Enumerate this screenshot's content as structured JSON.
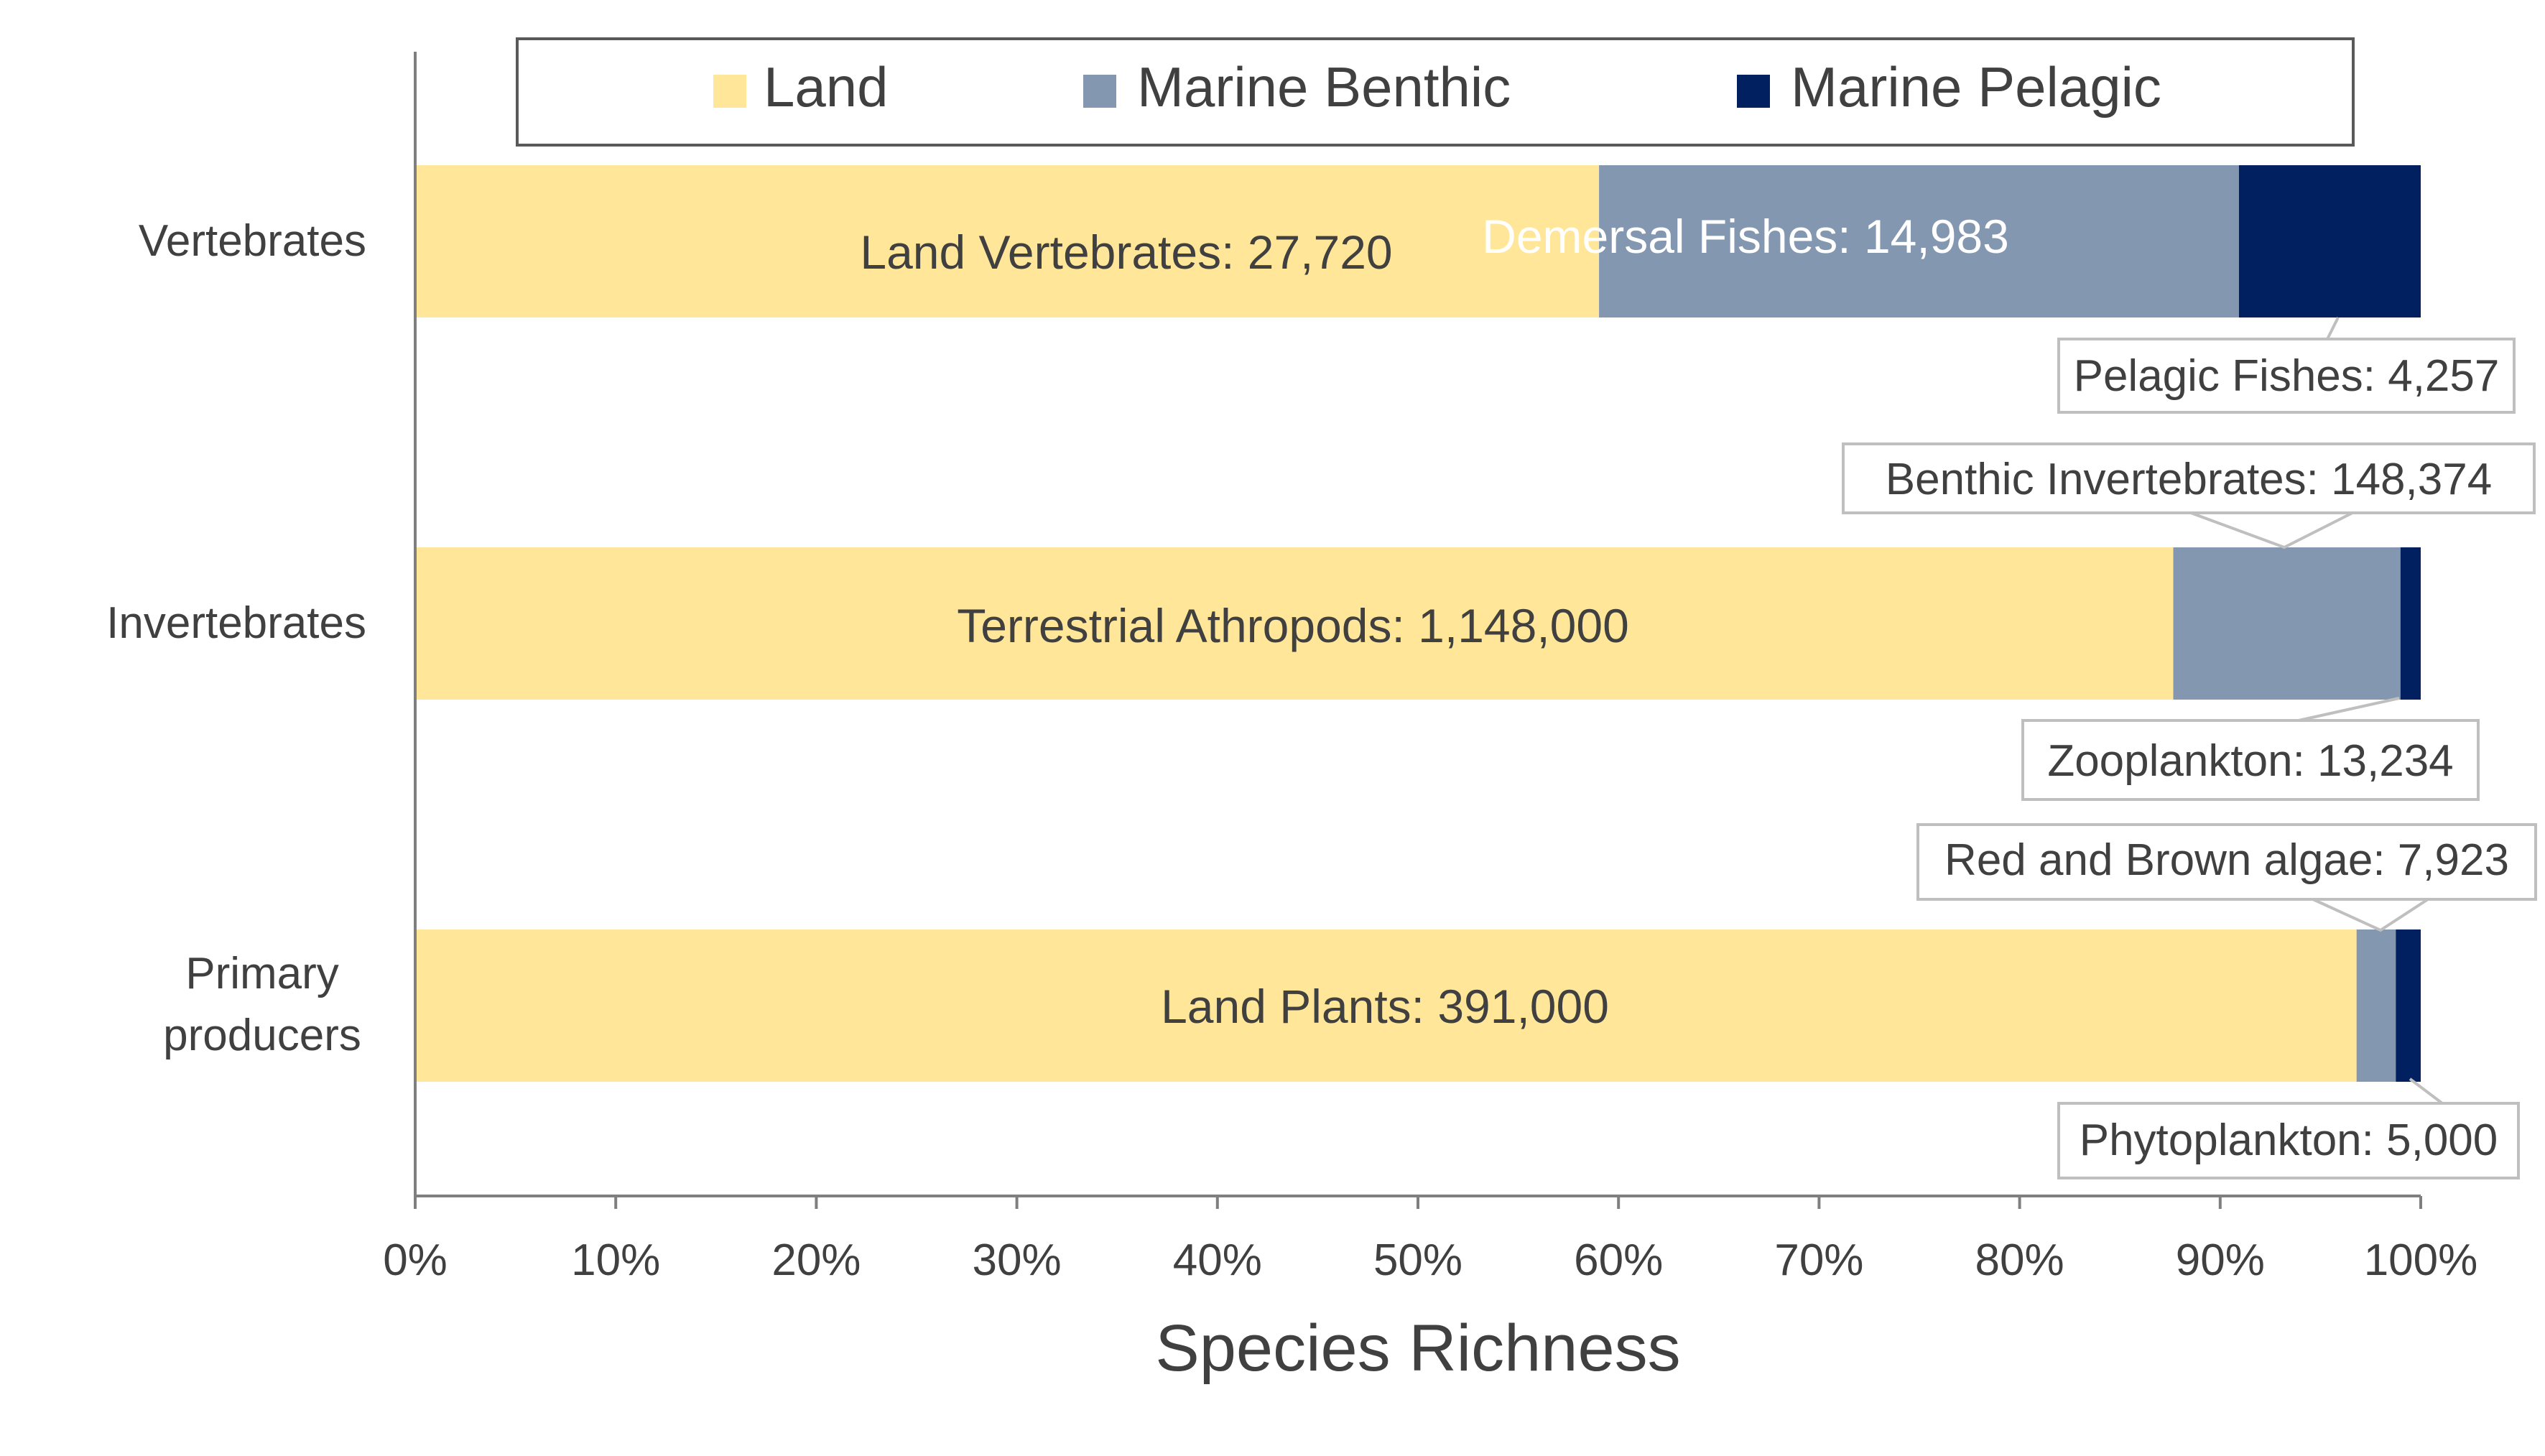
{
  "chart_data": {
    "type": "bar",
    "orientation": "horizontal",
    "stacked": "percent",
    "xlabel": "Species Richness",
    "ylabel": "",
    "xlim": [
      0,
      100
    ],
    "x_ticks": [
      "0%",
      "10%",
      "20%",
      "30%",
      "40%",
      "50%",
      "60%",
      "70%",
      "80%",
      "90%",
      "100%"
    ],
    "grid": false,
    "legend_position": "top",
    "categories": [
      "Vertebrates",
      "Invertebrates",
      "Primary producers"
    ],
    "series": [
      {
        "name": "Land",
        "color": "#FFE699",
        "values": [
          27720,
          1148000,
          391000
        ],
        "labels": [
          "Land Vertebrates: 27,720",
          "Terrestrial Athropods: 1,148,000",
          "Land Plants: 391,000"
        ]
      },
      {
        "name": "Marine Benthic",
        "color": "#8497B0",
        "values": [
          14983,
          148374,
          7923
        ],
        "labels": [
          "Demersal Fishes: 14,983",
          "Benthic Invertebrates: 148,374",
          "Red and Brown algae: 7,923"
        ]
      },
      {
        "name": "Marine Pelagic",
        "color": "#002060",
        "values": [
          4257,
          13234,
          5000
        ],
        "labels": [
          "Pelagic Fishes: 4,257",
          "Zooplankton: 13,234",
          "Phytoplankton: 5,000"
        ]
      }
    ]
  }
}
